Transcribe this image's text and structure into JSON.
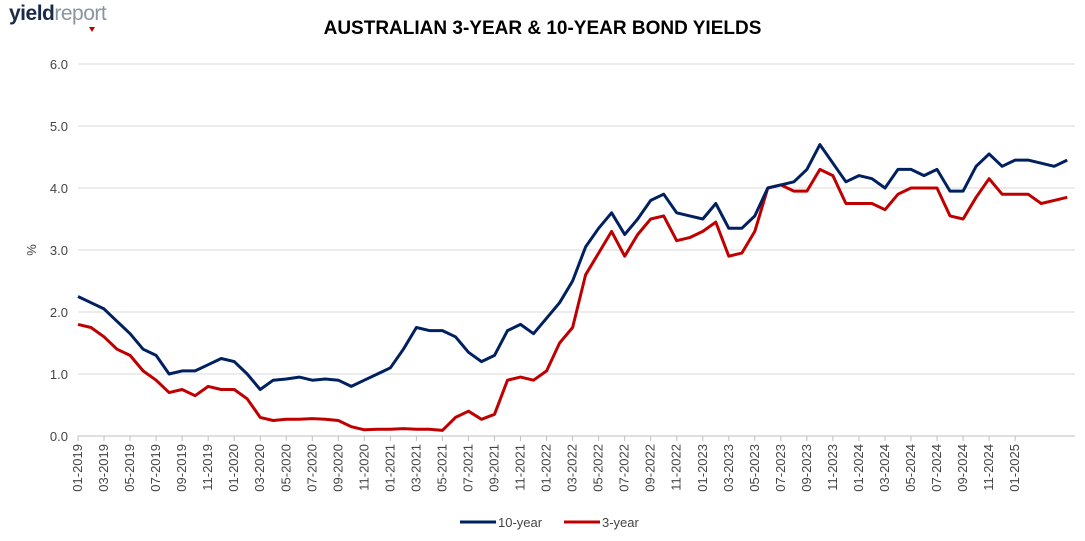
{
  "logo": {
    "part1": "yield",
    "part2": "report"
  },
  "chart_data": {
    "type": "line",
    "title": "AUSTRALIAN 3-YEAR & 10-YEAR BOND YIELDS",
    "ylabel": "%",
    "ylim": [
      0,
      6
    ],
    "yticks": [
      "0.0",
      "1.0",
      "2.0",
      "3.0",
      "4.0",
      "5.0",
      "6.0"
    ],
    "xticks": [
      "01-2019",
      "03-2019",
      "05-2019",
      "07-2019",
      "09-2019",
      "11-2019",
      "01-2020",
      "03-2020",
      "05-2020",
      "07-2020",
      "09-2020",
      "11-2020",
      "01-2021",
      "03-2021",
      "05-2021",
      "07-2021",
      "09-2021",
      "11-2021",
      "01-2022",
      "03-2022",
      "05-2022",
      "07-2022",
      "09-2022",
      "11-2022",
      "01-2023",
      "03-2023",
      "05-2023",
      "07-2023",
      "09-2023",
      "11-2023",
      "01-2024",
      "03-2024",
      "05-2024",
      "07-2024",
      "09-2024",
      "11-2024",
      "01-2025"
    ],
    "xrange": [
      "2019-01",
      "2025-05"
    ],
    "grid": true,
    "legend_position": "bottom",
    "series": [
      {
        "name": "10-year",
        "color": "#002060",
        "points": [
          [
            "2019-01",
            2.25
          ],
          [
            "2019-02",
            2.15
          ],
          [
            "2019-03",
            2.05
          ],
          [
            "2019-04",
            1.85
          ],
          [
            "2019-05",
            1.65
          ],
          [
            "2019-06",
            1.4
          ],
          [
            "2019-07",
            1.3
          ],
          [
            "2019-08",
            1.0
          ],
          [
            "2019-09",
            1.05
          ],
          [
            "2019-10",
            1.05
          ],
          [
            "2019-11",
            1.15
          ],
          [
            "2019-12",
            1.25
          ],
          [
            "2020-01",
            1.2
          ],
          [
            "2020-02",
            1.0
          ],
          [
            "2020-03",
            0.75
          ],
          [
            "2020-04",
            0.9
          ],
          [
            "2020-05",
            0.92
          ],
          [
            "2020-06",
            0.95
          ],
          [
            "2020-07",
            0.9
          ],
          [
            "2020-08",
            0.92
          ],
          [
            "2020-09",
            0.9
          ],
          [
            "2020-10",
            0.8
          ],
          [
            "2020-11",
            0.9
          ],
          [
            "2020-12",
            1.0
          ],
          [
            "2021-01",
            1.1
          ],
          [
            "2021-02",
            1.4
          ],
          [
            "2021-03",
            1.75
          ],
          [
            "2021-04",
            1.7
          ],
          [
            "2021-05",
            1.7
          ],
          [
            "2021-06",
            1.6
          ],
          [
            "2021-07",
            1.35
          ],
          [
            "2021-08",
            1.2
          ],
          [
            "2021-09",
            1.3
          ],
          [
            "2021-10",
            1.7
          ],
          [
            "2021-11",
            1.8
          ],
          [
            "2021-12",
            1.65
          ],
          [
            "2022-01",
            1.9
          ],
          [
            "2022-02",
            2.15
          ],
          [
            "2022-03",
            2.5
          ],
          [
            "2022-04",
            3.05
          ],
          [
            "2022-05",
            3.35
          ],
          [
            "2022-06",
            3.6
          ],
          [
            "2022-07",
            3.25
          ],
          [
            "2022-08",
            3.5
          ],
          [
            "2022-09",
            3.8
          ],
          [
            "2022-10",
            3.9
          ],
          [
            "2022-11",
            3.6
          ],
          [
            "2022-12",
            3.55
          ],
          [
            "2023-01",
            3.5
          ],
          [
            "2023-02",
            3.75
          ],
          [
            "2023-03",
            3.35
          ],
          [
            "2023-04",
            3.35
          ],
          [
            "2023-05",
            3.55
          ],
          [
            "2023-06",
            4.0
          ],
          [
            "2023-07",
            4.05
          ],
          [
            "2023-08",
            4.1
          ],
          [
            "2023-09",
            4.3
          ],
          [
            "2023-10",
            4.7
          ],
          [
            "2023-11",
            4.4
          ],
          [
            "2023-12",
            4.1
          ],
          [
            "2024-01",
            4.2
          ],
          [
            "2024-02",
            4.15
          ],
          [
            "2024-03",
            4.0
          ],
          [
            "2024-04",
            4.3
          ],
          [
            "2024-05",
            4.3
          ],
          [
            "2024-06",
            4.2
          ],
          [
            "2024-07",
            4.3
          ],
          [
            "2024-08",
            3.95
          ],
          [
            "2024-09",
            3.95
          ],
          [
            "2024-10",
            4.35
          ],
          [
            "2024-11",
            4.55
          ],
          [
            "2024-12",
            4.35
          ],
          [
            "2025-01",
            4.45
          ],
          [
            "2025-02",
            4.45
          ],
          [
            "2025-03",
            4.4
          ],
          [
            "2025-04",
            4.35
          ],
          [
            "2025-05",
            4.45
          ]
        ]
      },
      {
        "name": "3-year",
        "color": "#c00000",
        "points": [
          [
            "2019-01",
            1.8
          ],
          [
            "2019-02",
            1.75
          ],
          [
            "2019-03",
            1.6
          ],
          [
            "2019-04",
            1.4
          ],
          [
            "2019-05",
            1.3
          ],
          [
            "2019-06",
            1.05
          ],
          [
            "2019-07",
            0.9
          ],
          [
            "2019-08",
            0.7
          ],
          [
            "2019-09",
            0.75
          ],
          [
            "2019-10",
            0.65
          ],
          [
            "2019-11",
            0.8
          ],
          [
            "2019-12",
            0.75
          ],
          [
            "2020-01",
            0.75
          ],
          [
            "2020-02",
            0.6
          ],
          [
            "2020-03",
            0.3
          ],
          [
            "2020-04",
            0.25
          ],
          [
            "2020-05",
            0.27
          ],
          [
            "2020-06",
            0.27
          ],
          [
            "2020-07",
            0.28
          ],
          [
            "2020-08",
            0.27
          ],
          [
            "2020-09",
            0.25
          ],
          [
            "2020-10",
            0.15
          ],
          [
            "2020-11",
            0.1
          ],
          [
            "2020-12",
            0.11
          ],
          [
            "2021-01",
            0.11
          ],
          [
            "2021-02",
            0.12
          ],
          [
            "2021-03",
            0.11
          ],
          [
            "2021-04",
            0.11
          ],
          [
            "2021-05",
            0.09
          ],
          [
            "2021-06",
            0.3
          ],
          [
            "2021-07",
            0.4
          ],
          [
            "2021-08",
            0.27
          ],
          [
            "2021-09",
            0.35
          ],
          [
            "2021-10",
            0.9
          ],
          [
            "2021-11",
            0.95
          ],
          [
            "2021-12",
            0.9
          ],
          [
            "2022-01",
            1.05
          ],
          [
            "2022-02",
            1.5
          ],
          [
            "2022-03",
            1.75
          ],
          [
            "2022-04",
            2.6
          ],
          [
            "2022-05",
            2.95
          ],
          [
            "2022-06",
            3.3
          ],
          [
            "2022-07",
            2.9
          ],
          [
            "2022-08",
            3.25
          ],
          [
            "2022-09",
            3.5
          ],
          [
            "2022-10",
            3.55
          ],
          [
            "2022-11",
            3.15
          ],
          [
            "2022-12",
            3.2
          ],
          [
            "2023-01",
            3.3
          ],
          [
            "2023-02",
            3.45
          ],
          [
            "2023-03",
            2.9
          ],
          [
            "2023-04",
            2.95
          ],
          [
            "2023-05",
            3.3
          ],
          [
            "2023-06",
            4.0
          ],
          [
            "2023-07",
            4.05
          ],
          [
            "2023-08",
            3.95
          ],
          [
            "2023-09",
            3.95
          ],
          [
            "2023-10",
            4.3
          ],
          [
            "2023-11",
            4.2
          ],
          [
            "2023-12",
            3.75
          ],
          [
            "2024-01",
            3.75
          ],
          [
            "2024-02",
            3.75
          ],
          [
            "2024-03",
            3.65
          ],
          [
            "2024-04",
            3.9
          ],
          [
            "2024-05",
            4.0
          ],
          [
            "2024-06",
            4.0
          ],
          [
            "2024-07",
            4.0
          ],
          [
            "2024-08",
            3.55
          ],
          [
            "2024-09",
            3.5
          ],
          [
            "2024-10",
            3.85
          ],
          [
            "2024-11",
            4.15
          ],
          [
            "2024-12",
            3.9
          ],
          [
            "2025-01",
            3.9
          ],
          [
            "2025-02",
            3.9
          ],
          [
            "2025-03",
            3.75
          ],
          [
            "2025-04",
            3.8
          ],
          [
            "2025-05",
            3.85
          ]
        ]
      }
    ]
  }
}
